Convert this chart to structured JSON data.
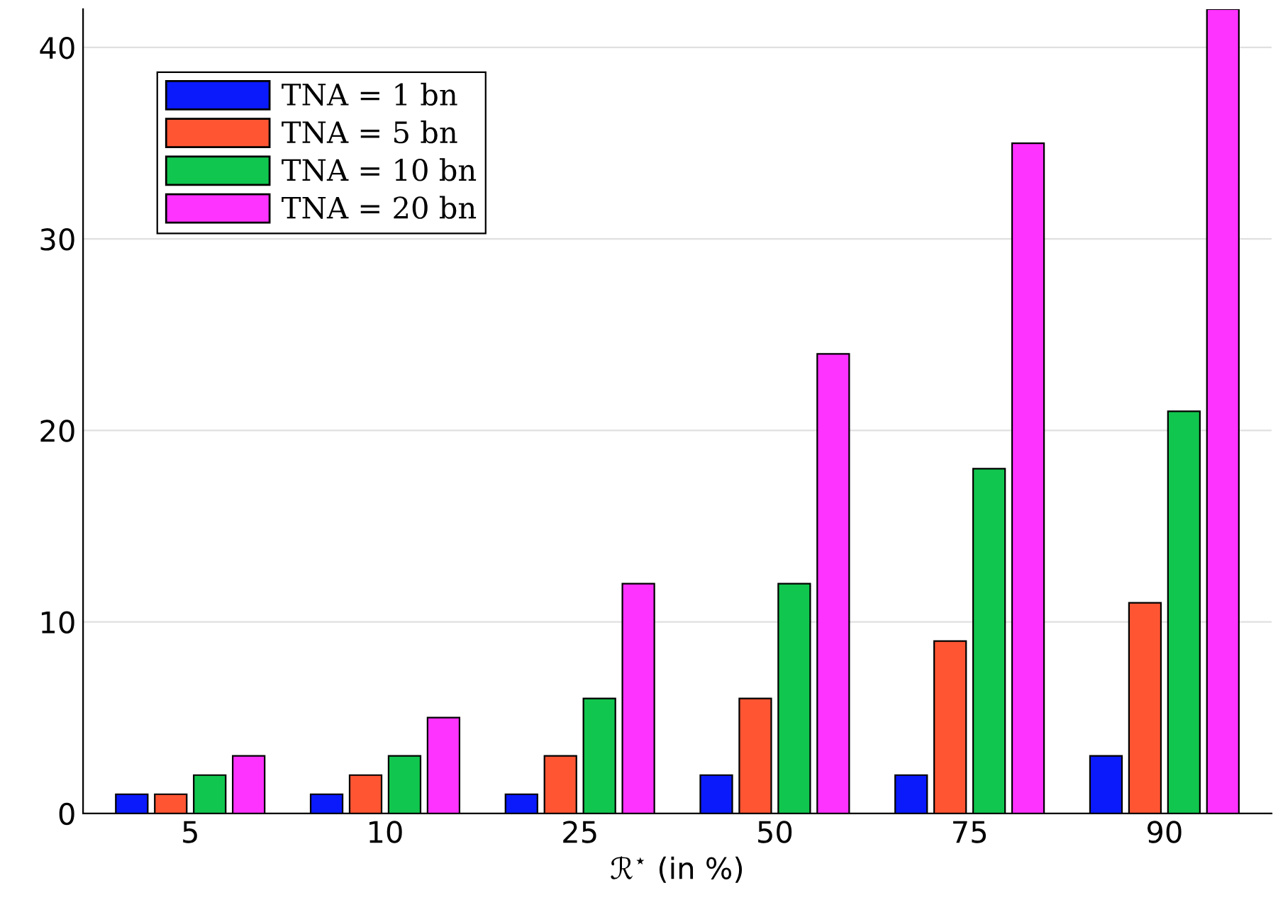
{
  "chart_data": {
    "type": "bar",
    "xlabel": "ℛ$^{⋆}$ (in %)",
    "categories": [
      "5",
      "10",
      "25",
      "50",
      "75",
      "90"
    ],
    "series": [
      {
        "name": "TNA = 1 bn",
        "color": "#0a1afa",
        "values": [
          1,
          1,
          1,
          2,
          2,
          3
        ]
      },
      {
        "name": "TNA = 5 bn",
        "color": "#ff5533",
        "values": [
          1,
          2,
          3,
          6,
          9,
          11
        ]
      },
      {
        "name": "TNA = 10 bn",
        "color": "#11c64e",
        "values": [
          2,
          3,
          6,
          12,
          18,
          21
        ]
      },
      {
        "name": "TNA = 20 bn",
        "color": "#ff33ff",
        "values": [
          3,
          5,
          12,
          24,
          35,
          42
        ]
      }
    ],
    "ylim": [
      0,
      42
    ],
    "yticks": [
      0,
      10,
      20,
      30,
      40
    ],
    "grid": "y",
    "legend": "top left"
  }
}
